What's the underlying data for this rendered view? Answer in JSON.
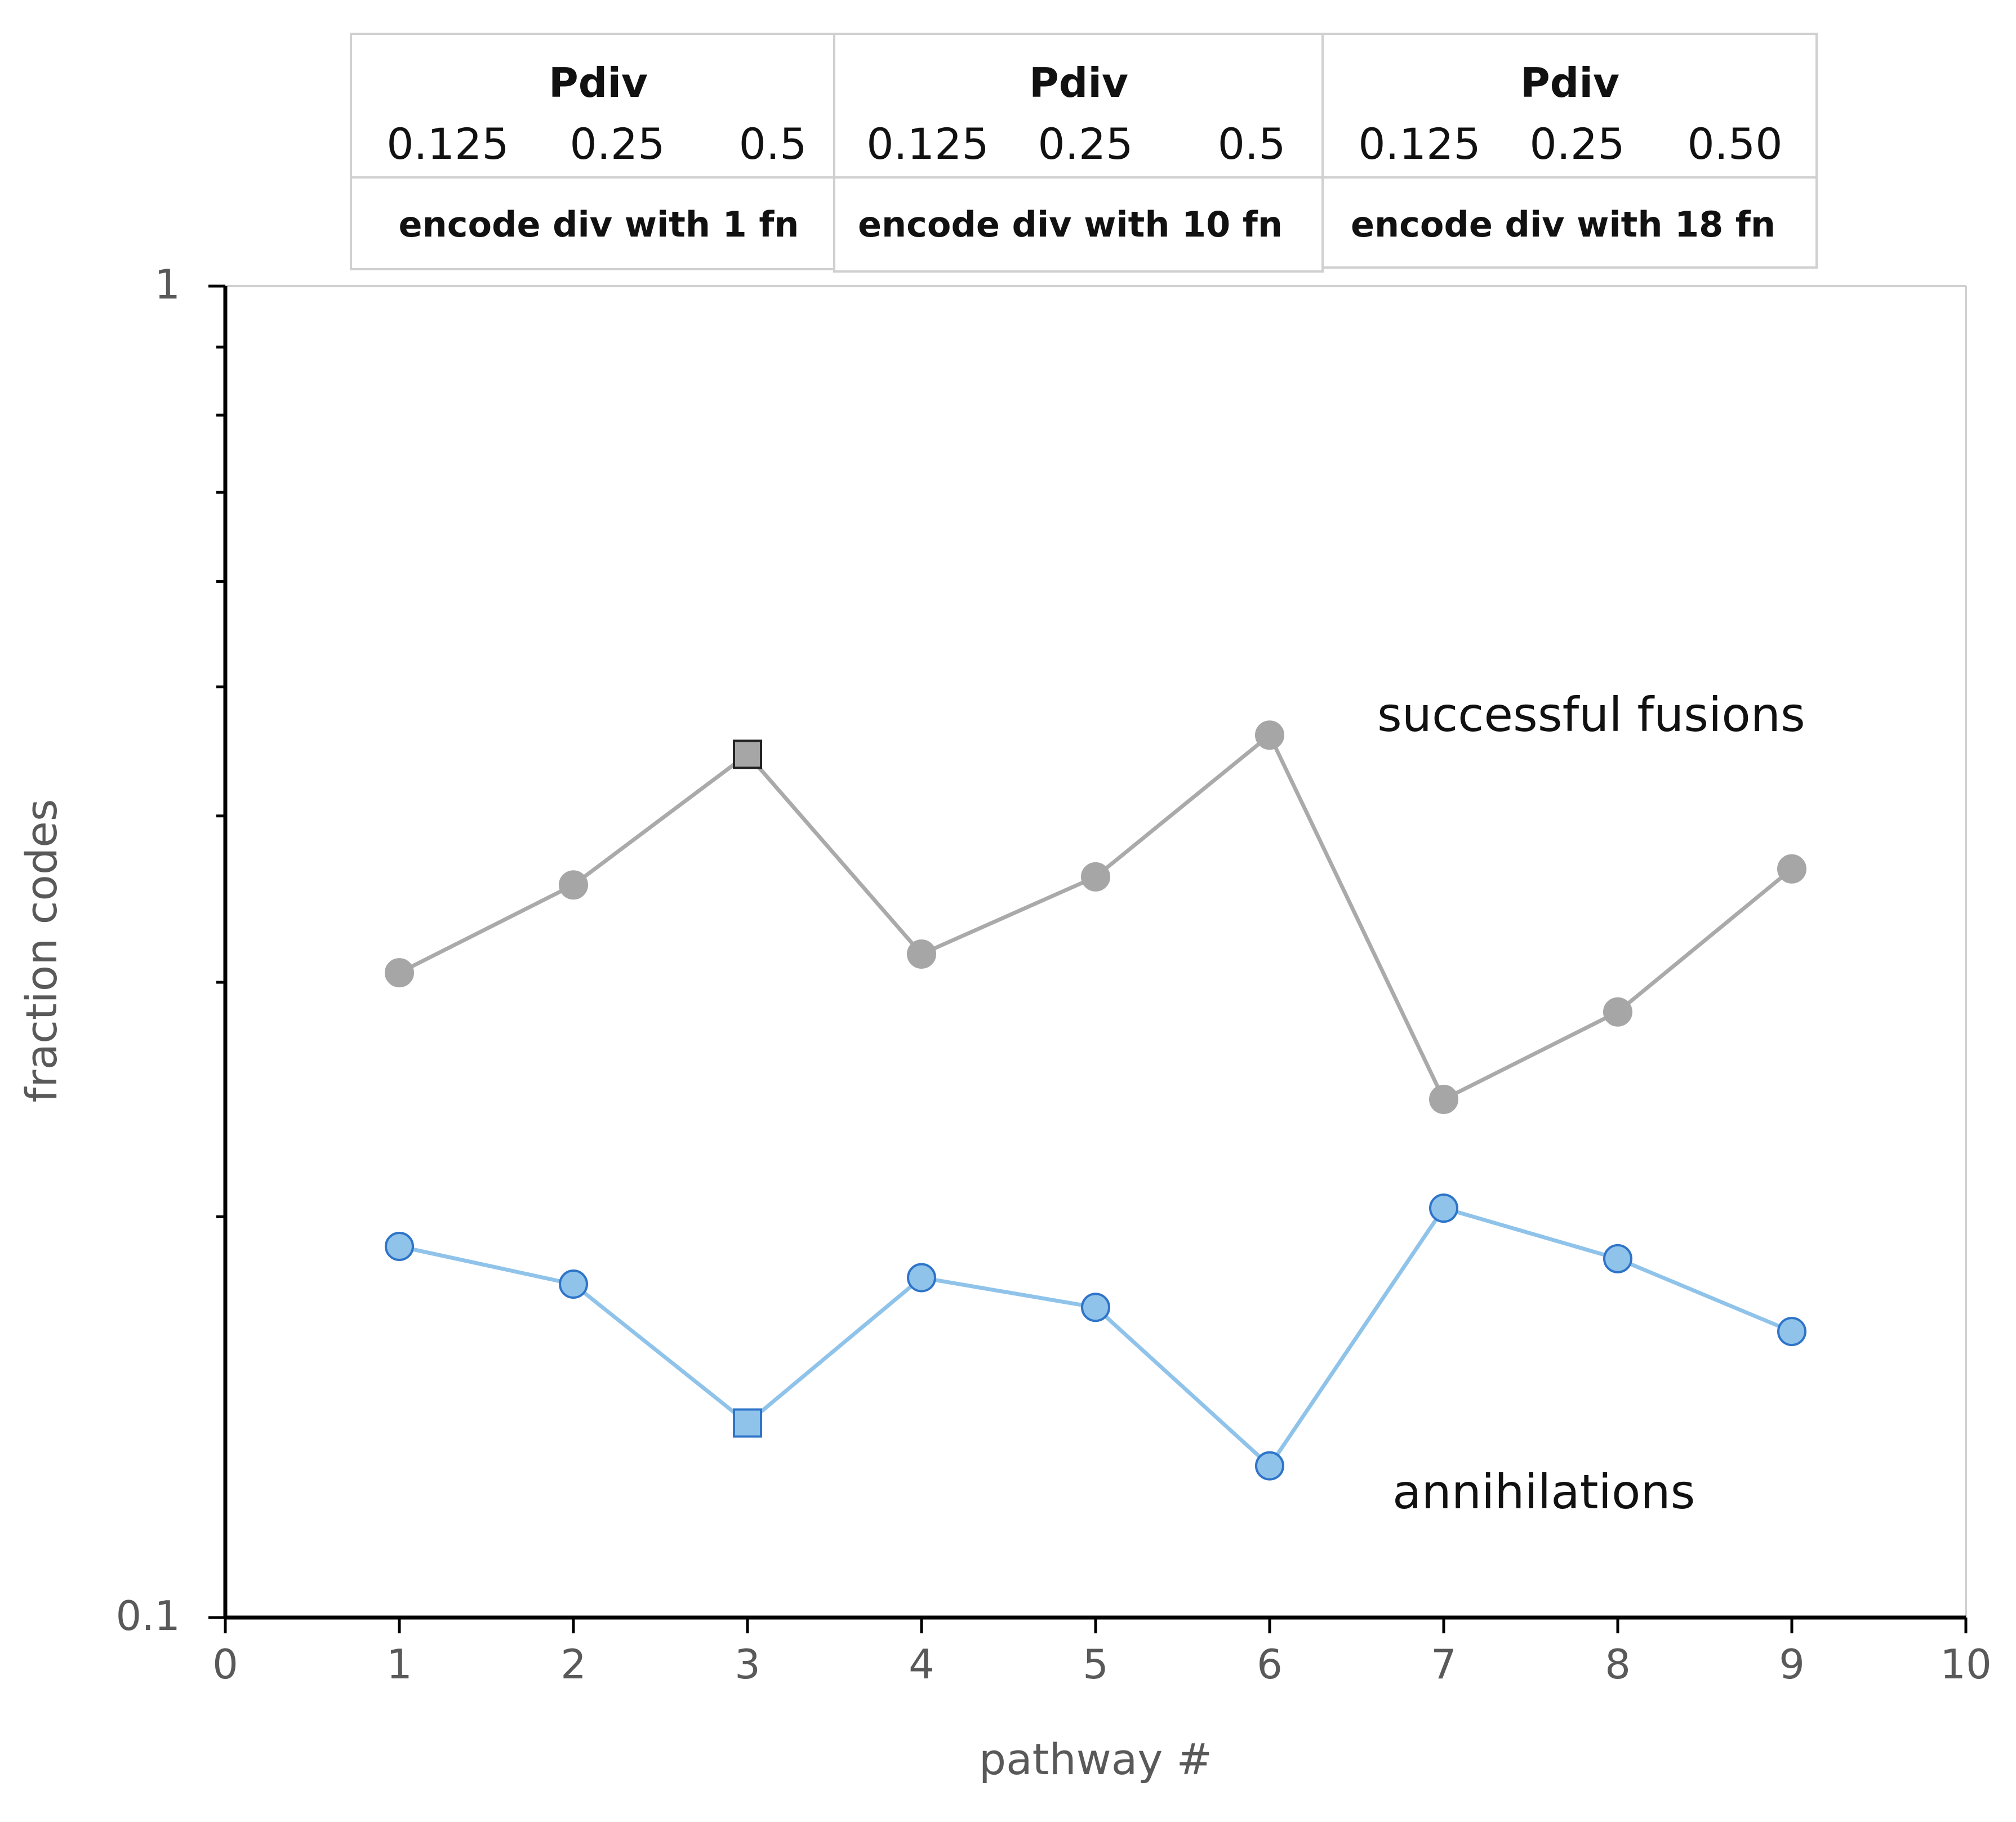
{
  "chart_data": {
    "type": "line",
    "yscale": "log",
    "xlabel": "pathway #",
    "ylabel": "fraction codes",
    "xlim": [
      0,
      10
    ],
    "ylim": [
      0.1,
      1
    ],
    "xticks": [
      0,
      1,
      2,
      3,
      4,
      5,
      6,
      7,
      8,
      9,
      10
    ],
    "yticks": [
      0.1,
      1
    ],
    "ytick_labels": [
      "0.1",
      "1"
    ],
    "x": [
      1,
      2,
      3,
      4,
      5,
      6,
      7,
      8,
      9
    ],
    "series": [
      {
        "name": "successful fusions",
        "color": "#aaaaaa",
        "values": [
          0.305,
          0.355,
          0.445,
          0.315,
          0.36,
          0.46,
          0.245,
          0.285,
          0.365
        ],
        "highlight_index": 2,
        "highlight_color": "#a6a6a6"
      },
      {
        "name": "annihilations",
        "color": "#8fc3ea",
        "values": [
          0.19,
          0.178,
          0.14,
          0.18,
          0.171,
          0.13,
          0.203,
          0.186,
          0.164
        ],
        "highlight_index": 2,
        "highlight_color": "#8fc3ea"
      }
    ],
    "annotations": [
      "successful fusions",
      "annihilations"
    ]
  },
  "legend_table": {
    "groups": [
      {
        "header": "Pdiv",
        "values": [
          "0.125",
          "0.25",
          "0.5"
        ],
        "footer": "encode div with 1 fn"
      },
      {
        "header": "Pdiv",
        "values": [
          "0.125",
          "0.25",
          "0.5"
        ],
        "footer": "encode div with 10 fn"
      },
      {
        "header": "Pdiv",
        "values": [
          "0.125",
          "0.25",
          "0.50"
        ],
        "footer": "encode div with 18 fn"
      }
    ]
  }
}
